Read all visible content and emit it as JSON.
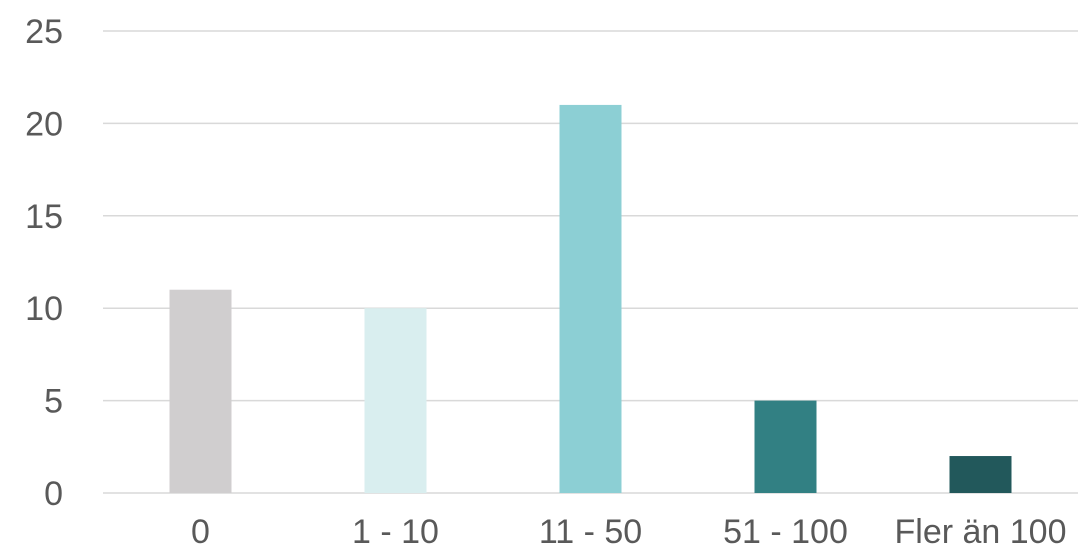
{
  "chart_data": {
    "type": "bar",
    "title": "",
    "xlabel": "",
    "ylabel": "",
    "categories": [
      "0",
      "1 - 10",
      "11 - 50",
      "51 - 100",
      "Fler än 100"
    ],
    "values": [
      11,
      10,
      21,
      5,
      2
    ],
    "colors": [
      "#d0cecf",
      "#d9eeef",
      "#8ccfd4",
      "#328083",
      "#22585b"
    ],
    "ylim": [
      0,
      25
    ],
    "yticks": [
      0,
      5,
      10,
      15,
      20,
      25
    ],
    "grid": true,
    "legend": "none"
  }
}
